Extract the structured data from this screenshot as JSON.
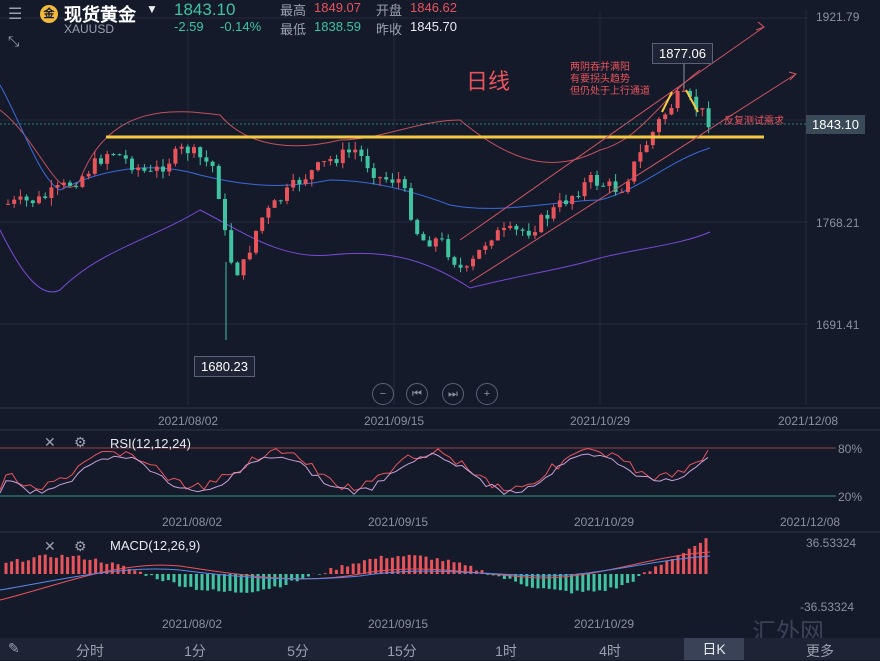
{
  "header": {
    "logo_char": "金",
    "title": "现货黄金",
    "symbol": "XAUUSD",
    "price": "1843.10",
    "change": "-2.59",
    "change_pct": "-0.14%",
    "high_label": "最高",
    "high_value": "1849.07",
    "open_label": "开盘",
    "open_value": "1846.62",
    "low_label": "最低",
    "low_value": "1838.59",
    "prev_label": "昨收",
    "prev_value": "1845.70"
  },
  "main_chart": {
    "period_label": "日线",
    "price_axis": [
      "1921.79",
      "1768.21",
      "1691.41"
    ],
    "high_marker": "1877.06",
    "low_marker": "1680.23",
    "current_price_tag": "1843.10",
    "annotation_top": [
      "两阴吞并满阳",
      "有要拐头趋势",
      "但仍处于上行通道"
    ],
    "annotation_right": "反复测试需求",
    "date_axis": [
      "2021/08/02",
      "2021/09/15",
      "2021/10/29",
      "2021/12/08"
    ]
  },
  "rsi": {
    "label": "RSI(12,12,24)",
    "levels": [
      "80%",
      "20%"
    ],
    "date_axis": [
      "2021/08/02",
      "2021/09/15",
      "2021/10/29",
      "2021/12/08"
    ]
  },
  "macd": {
    "label": "MACD(12,26,9)",
    "levels": [
      "36.53324",
      "-36.53324"
    ],
    "date_axis": [
      "2021/08/02",
      "2021/09/15",
      "2021/10/29"
    ]
  },
  "tabs": [
    "分时",
    "1分",
    "5分",
    "15分",
    "1时",
    "4时",
    "日K",
    "更多"
  ],
  "active_tab": "日K",
  "watermark": "汇外网",
  "colors": {
    "up": "#e8545a",
    "down": "#3fc3a0",
    "background": "#151a2b",
    "support_line": "#f5c842"
  }
}
